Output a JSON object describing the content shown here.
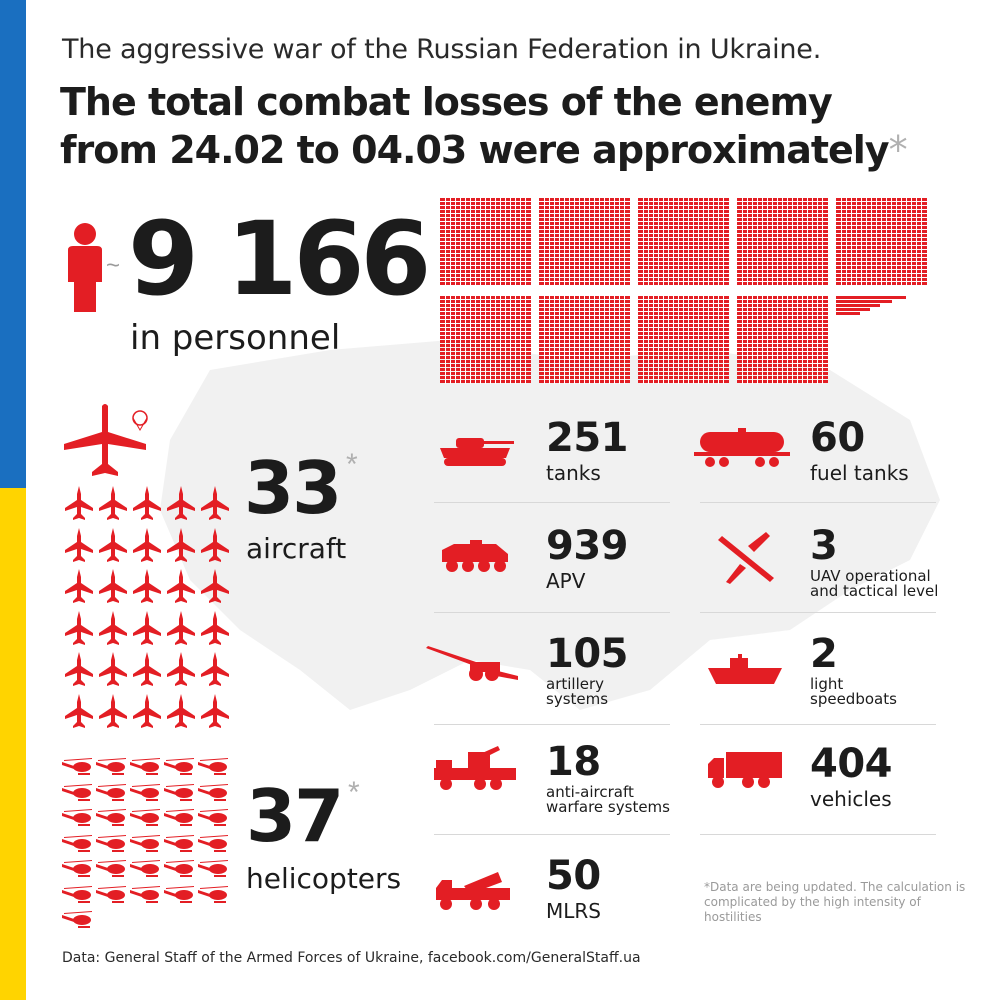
{
  "header": {
    "subtitle": "The aggressive war of the Russian Federation in Ukraine.",
    "title_line1": "The total combat losses of the enemy",
    "title_line2": "from 24.02 to 04.03 were approximately",
    "title_asterisk": "*"
  },
  "personnel": {
    "tilde": "~",
    "value": "9 166",
    "label": "in personnel"
  },
  "aircraft": {
    "value": "33",
    "asterisk": "*",
    "label": "aircraft"
  },
  "helicopters": {
    "value": "37",
    "asterisk": "*",
    "label": "helicopters"
  },
  "stats": [
    {
      "key": "tanks",
      "value": "251",
      "label": "tanks",
      "icon": "tank-icon"
    },
    {
      "key": "fuel",
      "value": "60",
      "label": "fuel tanks",
      "icon": "fuel-tank-icon"
    },
    {
      "key": "apv",
      "value": "939",
      "label": "APV",
      "icon": "apv-icon"
    },
    {
      "key": "uav",
      "value": "3",
      "label1": "UAV operational",
      "label2": "and tactical level",
      "icon": "uav-icon"
    },
    {
      "key": "artillery",
      "value": "105",
      "label1": "artillery",
      "label2": "systems",
      "icon": "artillery-icon"
    },
    {
      "key": "boats",
      "value": "2",
      "label1": "light",
      "label2": "speedboats",
      "icon": "speedboat-icon"
    },
    {
      "key": "antiair",
      "value": "18",
      "label1": "anti-aircraft",
      "label2": "warfare systems",
      "icon": "anti-aircraft-icon"
    },
    {
      "key": "vehicles",
      "value": "404",
      "label": "vehicles",
      "icon": "truck-icon"
    },
    {
      "key": "mlrs",
      "value": "50",
      "label": "MLRS",
      "icon": "mlrs-icon"
    }
  ],
  "note": "*Data are being updated. The calculation is complicated by the high intensity of hostilities",
  "source": "Data: General Staff of the Armed Forces of Ukraine, facebook.com/GeneralStaff.ua",
  "colors": {
    "accent": "#e31e24",
    "flag_blue": "#1a6fc0",
    "flag_yellow": "#ffd400",
    "text": "#1c1c1c",
    "muted": "#9a9a9a"
  }
}
